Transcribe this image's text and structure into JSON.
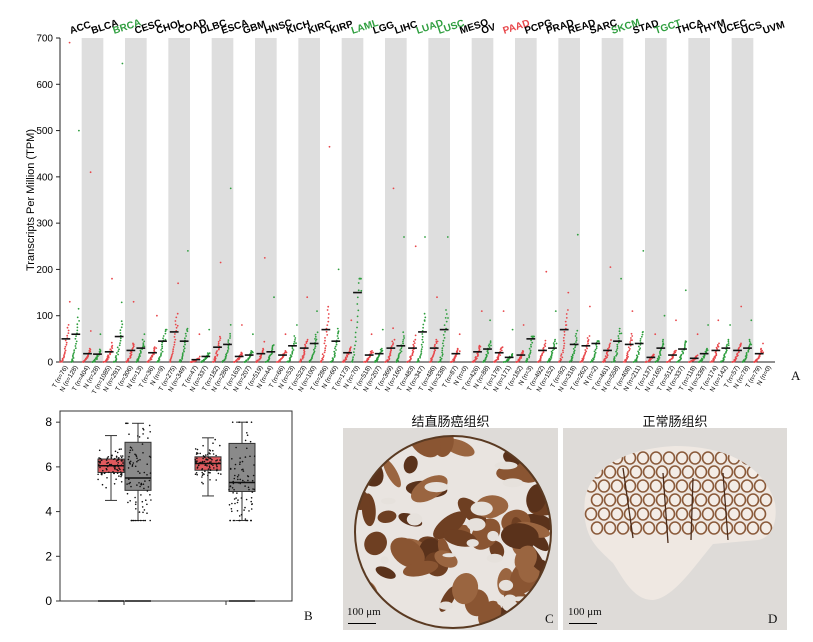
{
  "colors": {
    "tumor": "#e8474b",
    "normal": "#2e9e3e",
    "band": "#dedede",
    "box_tumor": "#e05a5e",
    "box_normal": "#8a8a8a",
    "stain": "#7a4a2a"
  },
  "chart_data": [
    {
      "panel": "A",
      "type": "scatter",
      "ylabel": "Transcripts Per Million (TPM)",
      "ylim": [
        0,
        700
      ],
      "yticks": [
        0,
        100,
        200,
        300,
        400,
        500,
        600,
        700
      ],
      "grid": false,
      "cancers": [
        {
          "name": "ACC",
          "color": "#000000",
          "tumor_n": "T (n=76)",
          "normal_n": "N (n=128)",
          "tumor_median": 50,
          "normal_median": 60,
          "tumor_max": 690,
          "normal_max": 500
        },
        {
          "name": "BLCA",
          "color": "#000000",
          "tumor_n": "T (n=404)",
          "normal_n": "N (n=28)",
          "tumor_median": 18,
          "normal_median": 17,
          "tumor_max": 410,
          "normal_max": 60
        },
        {
          "name": "BRCA",
          "color": "#2e9e3e",
          "tumor_n": "T (n=1085)",
          "normal_n": "N (n=291)",
          "tumor_median": 22,
          "normal_median": 55,
          "tumor_max": 180,
          "normal_max": 645
        },
        {
          "name": "CESC",
          "color": "#000000",
          "tumor_n": "T (n=306)",
          "normal_n": "N (n=13)",
          "tumor_median": 25,
          "normal_median": 30,
          "tumor_max": 130,
          "normal_max": 60
        },
        {
          "name": "CHOL",
          "color": "#000000",
          "tumor_n": "T (n=36)",
          "normal_n": "N (n=9)",
          "tumor_median": 20,
          "normal_median": 45,
          "tumor_max": 100,
          "normal_max": 70
        },
        {
          "name": "COAD",
          "color": "#000000",
          "tumor_n": "T (n=275)",
          "normal_n": "N (n=349)",
          "tumor_median": 65,
          "normal_median": 45,
          "tumor_max": 170,
          "normal_max": 240
        },
        {
          "name": "DLBC",
          "color": "#000000",
          "tumor_n": "T (n=47)",
          "normal_n": "N (n=337)",
          "tumor_median": 5,
          "normal_median": 12,
          "tumor_max": 60,
          "normal_max": 70
        },
        {
          "name": "ESCA",
          "color": "#000000",
          "tumor_n": "T (n=182)",
          "normal_n": "N (n=286)",
          "tumor_median": 32,
          "normal_median": 38,
          "tumor_max": 215,
          "normal_max": 375
        },
        {
          "name": "GBM",
          "color": "#000000",
          "tumor_n": "T (n=163)",
          "normal_n": "N (n=207)",
          "tumor_median": 12,
          "normal_median": 15,
          "tumor_max": 80,
          "normal_max": 60
        },
        {
          "name": "HNSC",
          "color": "#000000",
          "tumor_n": "T (n=519)",
          "normal_n": "N (n=44)",
          "tumor_median": 18,
          "normal_median": 22,
          "tumor_max": 225,
          "normal_max": 140
        },
        {
          "name": "KICH",
          "color": "#000000",
          "tumor_n": "T (n=66)",
          "normal_n": "N (n=53)",
          "tumor_median": 15,
          "normal_median": 35,
          "tumor_max": 60,
          "normal_max": 80
        },
        {
          "name": "KIRC",
          "color": "#000000",
          "tumor_n": "T (n=523)",
          "normal_n": "N (n=100)",
          "tumor_median": 30,
          "normal_median": 40,
          "tumor_max": 140,
          "normal_max": 110
        },
        {
          "name": "KIRP",
          "color": "#000000",
          "tumor_n": "T (n=286)",
          "normal_n": "N (n=60)",
          "tumor_median": 70,
          "normal_median": 45,
          "tumor_max": 465,
          "normal_max": 200
        },
        {
          "name": "LAML",
          "color": "#2e9e3e",
          "tumor_n": "T (n=173)",
          "normal_n": "N (n=70)",
          "tumor_median": 20,
          "normal_median": 150,
          "tumor_max": 90,
          "normal_max": 180
        },
        {
          "name": "LGG",
          "color": "#000000",
          "tumor_n": "T (n=518)",
          "normal_n": "N (n=207)",
          "tumor_median": 15,
          "normal_median": 18,
          "tumor_max": 60,
          "normal_max": 70
        },
        {
          "name": "LIHC",
          "color": "#000000",
          "tumor_n": "T (n=369)",
          "normal_n": "N (n=160)",
          "tumor_median": 30,
          "normal_median": 35,
          "tumor_max": 375,
          "normal_max": 270
        },
        {
          "name": "LUAD",
          "color": "#2e9e3e",
          "tumor_n": "T (n=483)",
          "normal_n": "N (n=347)",
          "tumor_median": 30,
          "normal_median": 65,
          "tumor_max": 250,
          "normal_max": 270
        },
        {
          "name": "LUSC",
          "color": "#2e9e3e",
          "tumor_n": "T (n=486)",
          "normal_n": "N (n=338)",
          "tumor_median": 30,
          "normal_median": 70,
          "tumor_max": 140,
          "normal_max": 270
        },
        {
          "name": "MESO",
          "color": "#000000",
          "tumor_n": "T (n=87)",
          "normal_n": "N (n=0)",
          "tumor_median": 18,
          "normal_median": null,
          "tumor_max": 60,
          "normal_max": null
        },
        {
          "name": "OV",
          "color": "#000000",
          "tumor_n": "T (n=426)",
          "normal_n": "N (n=88)",
          "tumor_median": 22,
          "normal_median": 28,
          "tumor_max": 110,
          "normal_max": 90
        },
        {
          "name": "PAAD",
          "color": "#e8474b",
          "tumor_n": "T (n=179)",
          "normal_n": "N (n=171)",
          "tumor_median": 20,
          "normal_median": 10,
          "tumor_max": 110,
          "normal_max": 70
        },
        {
          "name": "PCPG",
          "color": "#000000",
          "tumor_n": "T (n=182)",
          "normal_n": "N (n=3)",
          "tumor_median": 15,
          "normal_median": 50,
          "tumor_max": 80,
          "normal_max": 55
        },
        {
          "name": "PRAD",
          "color": "#000000",
          "tumor_n": "T (n=492)",
          "normal_n": "N (n=152)",
          "tumor_median": 25,
          "normal_median": 30,
          "tumor_max": 195,
          "normal_max": 110
        },
        {
          "name": "READ",
          "color": "#000000",
          "tumor_n": "T (n=92)",
          "normal_n": "N (n=318)",
          "tumor_median": 70,
          "normal_median": 38,
          "tumor_max": 150,
          "normal_max": 275
        },
        {
          "name": "SARC",
          "color": "#000000",
          "tumor_n": "T (n=262)",
          "normal_n": "N (n=2)",
          "tumor_median": 35,
          "normal_median": 40,
          "tumor_max": 120,
          "normal_max": 45
        },
        {
          "name": "SKCM",
          "color": "#2e9e3e",
          "tumor_n": "T (n=461)",
          "normal_n": "N (n=558)",
          "tumor_median": 25,
          "normal_median": 45,
          "tumor_max": 205,
          "normal_max": 180
        },
        {
          "name": "STAD",
          "color": "#000000",
          "tumor_n": "T (n=408)",
          "normal_n": "N (n=211)",
          "tumor_median": 38,
          "normal_median": 40,
          "tumor_max": 110,
          "normal_max": 240
        },
        {
          "name": "TGCT",
          "color": "#2e9e3e",
          "tumor_n": "T (n=137)",
          "normal_n": "N (n=165)",
          "tumor_median": 10,
          "normal_median": 30,
          "tumor_max": 60,
          "normal_max": 100
        },
        {
          "name": "THCA",
          "color": "#000000",
          "tumor_n": "T (n=512)",
          "normal_n": "N (n=337)",
          "tumor_median": 15,
          "normal_median": 28,
          "tumor_max": 90,
          "normal_max": 155
        },
        {
          "name": "THYM",
          "color": "#000000",
          "tumor_n": "T (n=118)",
          "normal_n": "N (n=339)",
          "tumor_median": 8,
          "normal_median": 18,
          "tumor_max": 60,
          "normal_max": 80
        },
        {
          "name": "UCEC",
          "color": "#000000",
          "tumor_n": "T (n=174)",
          "normal_n": "N (n=142)",
          "tumor_median": 25,
          "normal_median": 30,
          "tumor_max": 90,
          "normal_max": 80
        },
        {
          "name": "UCS",
          "color": "#000000",
          "tumor_n": "T (n=57)",
          "normal_n": "N (n=78)",
          "tumor_median": 25,
          "normal_median": 30,
          "tumor_max": 120,
          "normal_max": 90
        },
        {
          "name": "UVM",
          "color": "#000000",
          "tumor_n": "T (n=79)",
          "normal_n": "N (n=0)",
          "tumor_median": 18,
          "normal_median": null,
          "tumor_max": 40,
          "normal_max": null
        }
      ]
    },
    {
      "panel": "B",
      "type": "box",
      "ylim": [
        0,
        8.5
      ],
      "yticks": [
        0,
        2,
        4,
        6,
        8
      ],
      "groups": [
        {
          "series": "tumor",
          "q1": 5.75,
          "median": 6.05,
          "q3": 6.35,
          "whisker_low": 4.5,
          "whisker_high": 7.4,
          "low_median": 0
        },
        {
          "series": "normal",
          "q1": 4.95,
          "median": 5.5,
          "q3": 7.1,
          "whisker_low": 3.6,
          "whisker_high": 7.95,
          "low_median": 0
        },
        {
          "series": "tumor",
          "q1": 5.85,
          "median": 6.15,
          "q3": 6.45,
          "whisker_low": 4.7,
          "whisker_high": 7.3,
          "low_median": null
        },
        {
          "series": "normal",
          "q1": 4.9,
          "median": 5.3,
          "q3": 7.05,
          "whisker_low": 3.6,
          "whisker_high": 8.0,
          "low_median": 0
        }
      ]
    }
  ],
  "panel_labels": {
    "a": "A",
    "b": "B",
    "c": "C",
    "d": "D"
  },
  "ihc": {
    "tumor_title": "结直肠癌组织",
    "normal_title": "正常肠组织",
    "scale_text": "100 μm"
  }
}
